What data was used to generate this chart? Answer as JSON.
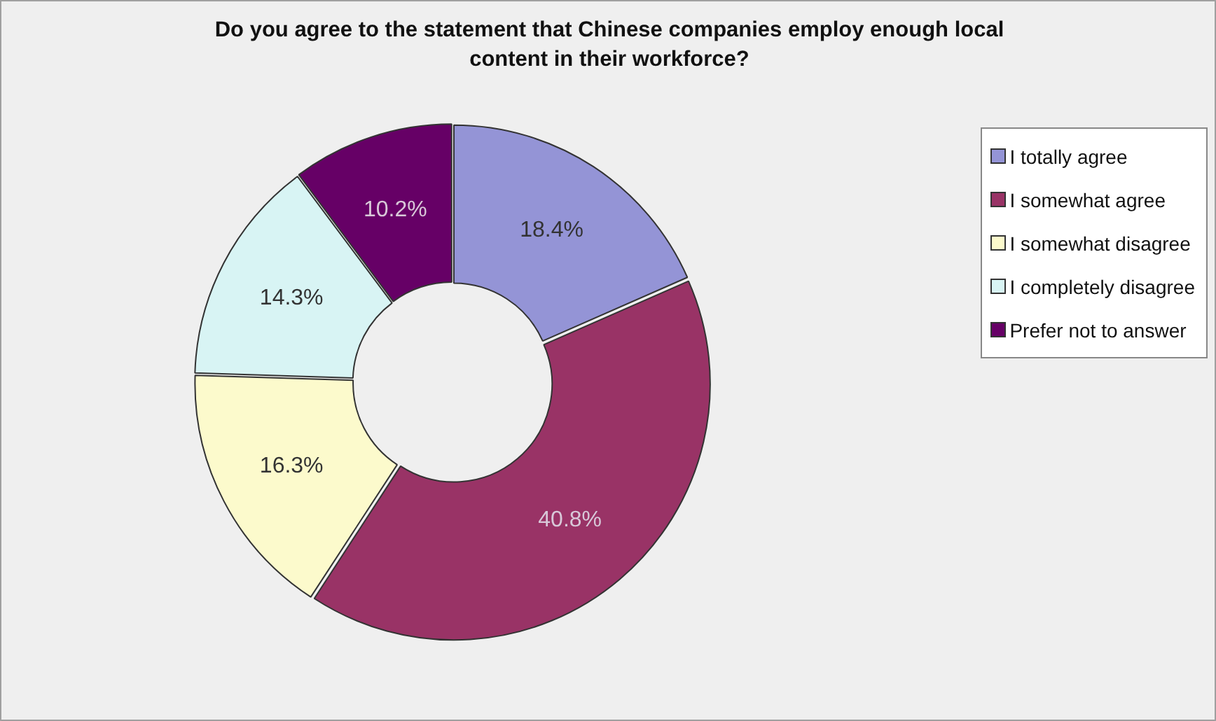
{
  "chart_data": {
    "type": "donut",
    "title": "Do you agree to the statement that Chinese companies employ enough local content in their workforce?",
    "categories": [
      "I totally agree",
      "I somewhat agree",
      "I somewhat disagree",
      "I completely disagree",
      "Prefer not to answer"
    ],
    "values": [
      18.4,
      40.8,
      16.3,
      14.3,
      10.2
    ],
    "colors": [
      "#9494d6",
      "#993366",
      "#fcfacc",
      "#d8f4f4",
      "#660066"
    ],
    "value_labels": [
      "18.4%",
      "40.8%",
      "16.3%",
      "14.3%",
      "10.2%"
    ],
    "legend": "top right"
  }
}
